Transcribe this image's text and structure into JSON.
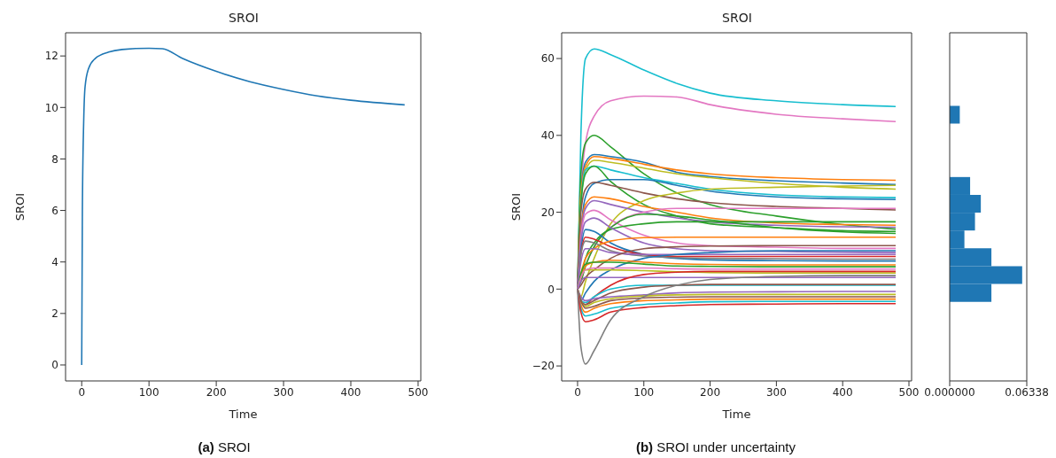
{
  "chart_data": [
    {
      "type": "line",
      "title": "SROI",
      "xlabel": "Time",
      "ylabel": "SROI",
      "annotations": [
        "(a) SROI"
      ],
      "x": [
        0,
        1,
        3,
        5,
        10,
        20,
        40,
        60,
        100,
        120,
        150,
        200,
        250,
        300,
        350,
        400,
        480
      ],
      "values": [
        0,
        6,
        9.5,
        10.8,
        11.5,
        11.9,
        12.15,
        12.25,
        12.3,
        12.28,
        11.9,
        11.4,
        11.0,
        10.7,
        10.45,
        10.28,
        10.1
      ],
      "color": "#1f77b4",
      "xlim": [
        -24,
        504
      ],
      "ylim": [
        -0.62,
        12.9
      ],
      "xticks": [
        0,
        100,
        200,
        300,
        400,
        500
      ],
      "yticks": [
        0,
        2,
        4,
        6,
        8,
        10,
        12
      ]
    },
    {
      "type": "line",
      "title": "SROI",
      "xlabel": "Time",
      "ylabel": "SROI",
      "annotations": [
        "(b) SROI under uncertainty"
      ],
      "x": [
        0,
        5,
        12,
        25,
        50,
        100,
        150,
        200,
        300,
        400,
        480
      ],
      "series": [
        {
          "color": "#17becf",
          "values": [
            0,
            40,
            60,
            62.5,
            61,
            57,
            53.5,
            51,
            49,
            48,
            47.5
          ]
        },
        {
          "color": "#e377c2",
          "values": [
            0,
            25,
            38,
            45,
            49,
            50.2,
            50,
            48,
            45.5,
            44.3,
            43.6
          ]
        },
        {
          "color": "#2ca02c",
          "values": [
            0,
            30,
            38,
            40,
            37,
            30,
            25,
            22,
            19,
            16.8,
            15.6
          ]
        },
        {
          "color": "#1f77b4",
          "values": [
            0,
            25,
            33,
            35,
            34.5,
            33,
            30.4,
            29.3,
            28.2,
            27.6,
            27.2
          ]
        },
        {
          "color": "#ff7f0e",
          "values": [
            0,
            25,
            32,
            34.5,
            34,
            32.5,
            31,
            30,
            29,
            28.5,
            28.3
          ]
        },
        {
          "color": "#bcbd22",
          "values": [
            0,
            24,
            31,
            33.5,
            33,
            31.5,
            30,
            29,
            27.5,
            26.5,
            26
          ]
        },
        {
          "color": "#17becf",
          "values": [
            0,
            22,
            31,
            32,
            31,
            29,
            27.5,
            26,
            24.5,
            24,
            23.8
          ]
        },
        {
          "color": "#2ca02c",
          "values": [
            0,
            22,
            30,
            32,
            28,
            22,
            19,
            17,
            16,
            15.2,
            15
          ]
        },
        {
          "color": "#1f77b4",
          "values": [
            0,
            15,
            24,
            27.5,
            28.5,
            28.5,
            27,
            25.5,
            24,
            23.5,
            23.3
          ]
        },
        {
          "color": "#8c564b",
          "values": [
            0,
            20,
            26,
            27.8,
            27,
            25,
            23.5,
            22.5,
            21.5,
            21,
            20.6
          ]
        },
        {
          "color": "#bcbd22",
          "values": [
            0,
            -2,
            2,
            8,
            17,
            23,
            25,
            26,
            26.5,
            26.8,
            27
          ]
        },
        {
          "color": "#ff7f0e",
          "values": [
            0,
            15,
            22,
            24,
            23.5,
            21.5,
            20,
            18.5,
            17.2,
            16.8,
            16.6
          ]
        },
        {
          "color": "#9467bd",
          "values": [
            0,
            14,
            21,
            23,
            22,
            20,
            18.5,
            17.5,
            16.6,
            16.2,
            16.1
          ]
        },
        {
          "color": "#e377c2",
          "values": [
            0,
            13,
            19.5,
            20.5,
            18,
            14,
            12,
            11.3,
            10.9,
            10.6,
            10.6
          ]
        },
        {
          "color": "#e377c2",
          "values": [
            0,
            2,
            6,
            11,
            16,
            20,
            21,
            21,
            21,
            21,
            21
          ]
        },
        {
          "color": "#2ca02c",
          "values": [
            0,
            3,
            8,
            12,
            15.5,
            17,
            17.5,
            17.5,
            17.5,
            17.5,
            17.5
          ]
        },
        {
          "color": "#2ca02c",
          "values": [
            0,
            2,
            6,
            11,
            16,
            19.5,
            19,
            18,
            16,
            14.9,
            14.5
          ]
        },
        {
          "color": "#9467bd",
          "values": [
            0,
            12,
            17.5,
            18.5,
            16,
            12,
            10.5,
            10,
            9.8,
            9.6,
            9.5
          ]
        },
        {
          "color": "#1f77b4",
          "values": [
            0,
            10,
            15.5,
            15,
            12,
            9,
            8,
            7.6,
            7.4,
            7.3,
            7.3
          ]
        },
        {
          "color": "#d62728",
          "values": [
            0,
            9,
            13.5,
            13,
            11,
            9,
            8.5,
            8.5,
            8.5,
            8.5,
            8.5
          ]
        },
        {
          "color": "#ff7f0e",
          "values": [
            0,
            4,
            8,
            10.5,
            12.5,
            13.4,
            13.5,
            13.5,
            13.5,
            13.5,
            13.5
          ]
        },
        {
          "color": "#7f7f7f",
          "values": [
            0,
            9,
            12.5,
            12,
            10,
            8.6,
            8.2,
            8,
            7.9,
            7.8,
            7.8
          ]
        },
        {
          "color": "#9467bd",
          "values": [
            0,
            7,
            10.5,
            10.5,
            9.5,
            9,
            9,
            9,
            9,
            9,
            9
          ]
        },
        {
          "color": "#8c564b",
          "values": [
            0,
            1,
            3,
            5,
            8,
            10.5,
            11,
            11.2,
            11.3,
            11.3,
            11.3
          ]
        },
        {
          "color": "#1f77b4",
          "values": [
            0,
            -3,
            -1,
            2,
            5,
            8,
            9,
            9.5,
            10,
            10,
            10
          ]
        },
        {
          "color": "#ff7f0e",
          "values": [
            0,
            3,
            6,
            7,
            7.5,
            7,
            6.6,
            6.4,
            6.3,
            6.3,
            6.3
          ]
        },
        {
          "color": "#2ca02c",
          "values": [
            0,
            4,
            6.5,
            7,
            7,
            6.5,
            6,
            5.9,
            5.8,
            5.8,
            5.8
          ]
        },
        {
          "color": "#bcbd22",
          "values": [
            0,
            3,
            5,
            5,
            5,
            4.8,
            4.5,
            4.3,
            4.2,
            4.2,
            4.2
          ]
        },
        {
          "color": "#e377c2",
          "values": [
            0,
            3,
            5,
            5.5,
            5.5,
            5.5,
            5.3,
            5.2,
            5.2,
            5.2,
            5.2
          ]
        },
        {
          "color": "#9467bd",
          "values": [
            0,
            2,
            3,
            3,
            3,
            3,
            3,
            3,
            3,
            3,
            3
          ]
        },
        {
          "color": "#d62728",
          "values": [
            0,
            -3,
            -4,
            -2,
            1,
            3.8,
            4.4,
            4.6,
            4.6,
            4.6,
            4.6
          ]
        },
        {
          "color": "#17becf",
          "values": [
            0,
            -3,
            -3.5,
            -2,
            0,
            1,
            1,
            1,
            1,
            1,
            1
          ]
        },
        {
          "color": "#8c564b",
          "values": [
            0,
            -3,
            -4,
            -3,
            -1,
            0.5,
            1,
            1.2,
            1.2,
            1.2,
            1.2
          ]
        },
        {
          "color": "#9467bd",
          "values": [
            0,
            -2,
            -3,
            -2.5,
            -2,
            -1.5,
            -1,
            -0.8,
            -0.7,
            -0.6,
            -0.6
          ]
        },
        {
          "color": "#bcbd22",
          "values": [
            0,
            -3,
            -4.5,
            -3.5,
            -2.5,
            -1.8,
            -1.5,
            -1.4,
            -1.4,
            -1.4,
            -1.4
          ]
        },
        {
          "color": "#ff7f0e",
          "values": [
            0,
            -4,
            -6,
            -5,
            -3.8,
            -3,
            -2.8,
            -2.6,
            -2.6,
            -2.6,
            -2.6
          ]
        },
        {
          "color": "#8c564b",
          "values": [
            0,
            -3,
            -5,
            -4.5,
            -3,
            -2.3,
            -2.1,
            -2,
            -2,
            -2,
            -2
          ]
        },
        {
          "color": "#17becf",
          "values": [
            0,
            -5,
            -7,
            -6.5,
            -5,
            -4,
            -3.6,
            -3.3,
            -3.2,
            -3.2,
            -3.2
          ]
        },
        {
          "color": "#d62728",
          "values": [
            0,
            -6,
            -8.5,
            -8,
            -6,
            -4.8,
            -4.3,
            -4,
            -3.9,
            -3.8,
            -3.8
          ]
        },
        {
          "color": "#7f7f7f",
          "values": [
            0,
            -15,
            -19.5,
            -16,
            -8,
            -2,
            1,
            2.5,
            3.3,
            3.5,
            3.5
          ]
        }
      ],
      "xlim": [
        -24,
        504
      ],
      "ylim": [
        -23.9,
        66.7
      ],
      "xticks": [
        0,
        100,
        200,
        300,
        400,
        500
      ],
      "yticks": [
        -20,
        0,
        20,
        40,
        60
      ]
    },
    {
      "type": "histogram",
      "orientation": "horizontal",
      "color": "#1f77b4",
      "bins": [
        -3.3,
        1.34,
        5.97,
        10.61,
        15.25,
        19.88,
        24.52,
        29.16,
        33.8,
        38.43,
        43.07,
        47.7
      ],
      "values": [
        0.0343,
        0.0596,
        0.0343,
        0.0121,
        0.0208,
        0.0256,
        0.0168,
        0,
        0,
        0,
        0.0083
      ],
      "xlim": [
        0,
        0.06338
      ],
      "xticks": [
        {
          "value": 0,
          "label": "0.000000"
        },
        0.06338
      ],
      "ylim": [
        -23.9,
        66.7
      ],
      "yticks": [
        -20,
        0,
        20,
        40,
        60
      ],
      "tick_labels": "x"
    }
  ]
}
